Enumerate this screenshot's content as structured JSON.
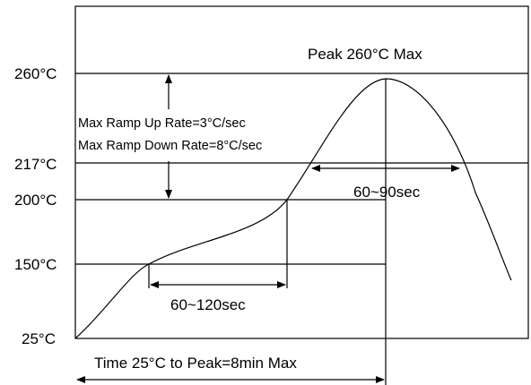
{
  "chart_data": {
    "type": "line",
    "title": "",
    "xlabel": "",
    "ylabel": "",
    "y_ticks": [
      {
        "label": "260°C",
        "value": 260
      },
      {
        "label": "217°C",
        "value": 217
      },
      {
        "label": "200°C",
        "value": 200
      },
      {
        "label": "150°C",
        "value": 150
      },
      {
        "label": "25°C",
        "value": 25
      }
    ],
    "annotations": {
      "peak": "Peak 260°C Max",
      "ramp_up": "Max Ramp Up Rate=3°C/sec",
      "ramp_down": "Max Ramp Down Rate=8°C/sec",
      "time_above_liquidus": "60~90sec",
      "preheat": "60~120sec",
      "total_time": "Time 25°C to Peak=8min Max"
    }
  }
}
